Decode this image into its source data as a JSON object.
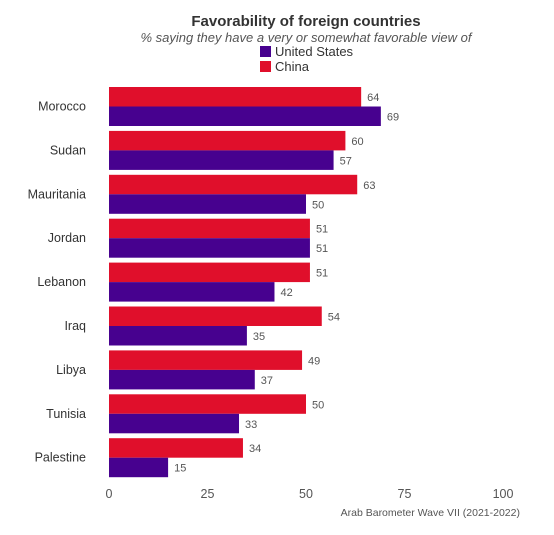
{
  "chart_data": {
    "type": "bar",
    "orientation": "horizontal",
    "title": "Favorability of foreign countries",
    "subtitle": "% saying they have a very or somewhat favorable view of",
    "categories": [
      "Morocco",
      "Sudan",
      "Mauritania",
      "Jordan",
      "Lebanon",
      "Iraq",
      "Libya",
      "Tunisia",
      "Palestine"
    ],
    "series": [
      {
        "name": "China",
        "color": "#e00f2b",
        "values": [
          64,
          60,
          63,
          51,
          51,
          54,
          49,
          50,
          34
        ]
      },
      {
        "name": "United States",
        "color": "#47018f",
        "values": [
          69,
          57,
          50,
          51,
          42,
          35,
          37,
          33,
          15
        ]
      }
    ],
    "legend_order": [
      "United States",
      "China"
    ],
    "legend_placement": "top-center",
    "xlim": [
      0,
      100
    ],
    "xticks": [
      0,
      25,
      50,
      75,
      100
    ],
    "grid": false,
    "source": "Arab Barometer Wave VII (2021-2022)"
  }
}
